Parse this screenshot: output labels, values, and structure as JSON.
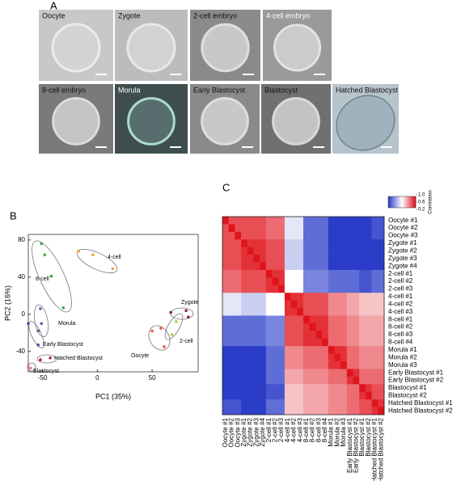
{
  "panel_a": {
    "label": "A",
    "images": [
      "Oocyte",
      "Zygote",
      "2-cell embryo",
      "4-cell embryo",
      "8-cell embryo",
      "Morula",
      "Early  Blastocyst",
      "Blastocyst",
      "Hatched  Blastocyst"
    ]
  },
  "chart_data": [
    {
      "type": "scatter",
      "panel_label": "B",
      "x_label": "PC1 (35%)",
      "y_label": "PC2 (16%)",
      "xlim": [
        -63,
        92
      ],
      "ylim": [
        -62,
        86
      ],
      "xticks": [
        -50,
        0,
        50
      ],
      "yticks": [
        -40,
        0,
        40,
        80
      ],
      "grid": false,
      "series": [
        {
          "name": "Oocyte",
          "color": "#e8554e",
          "x": [
            50,
            58,
            61
          ],
          "values": [
            -18,
            -15,
            -35
          ]
        },
        {
          "name": "Zygote",
          "color": "#8b2252",
          "x": [
            67,
            81,
            83
          ],
          "values": [
            2,
            4,
            -3
          ]
        },
        {
          "name": "2-cell",
          "color": "#a6cf4a",
          "x": [
            68,
            72
          ],
          "values": [
            -22,
            -8
          ]
        },
        {
          "name": "4-cell",
          "color": "#f0a030",
          "x": [
            -17,
            -4,
            14
          ],
          "values": [
            68,
            64,
            49
          ]
        },
        {
          "name": "8-cell",
          "color": "#3aa84a",
          "x": [
            -51,
            -48,
            -42,
            -31
          ],
          "values": [
            76,
            64,
            41,
            7
          ]
        },
        {
          "name": "Morula",
          "color": "#7a4fa0",
          "x": [
            -52,
            -51,
            -54
          ],
          "values": [
            6,
            -10,
            -18
          ]
        },
        {
          "name": "Early Blastocyst",
          "color": "#4a4ab0",
          "x": [
            -63,
            -54
          ],
          "values": [
            -10,
            -33
          ]
        },
        {
          "name": "Blastocyst",
          "color": "#e07aa0",
          "x": [
            -63,
            -61
          ],
          "values": [
            -55,
            -58
          ]
        },
        {
          "name": "Hatched Blastocyst",
          "color": "#b0203a",
          "x": [
            -52,
            -43
          ],
          "values": [
            -49,
            -47
          ]
        }
      ]
    },
    {
      "type": "heatmap",
      "panel_label": "C",
      "row_labels": [
        "Oocyte #1",
        "Oocyte #2",
        "Oocyte #3",
        "Zygote #1",
        "Zygote #2",
        "Zygote #3",
        "Zygote #4",
        "2-cell #1",
        "2-cell #2",
        "2-cell #3",
        "4-cell #1",
        "4-cell #2",
        "4-cell #3",
        "8-cell #1",
        "8-cell #2",
        "8-cell #3",
        "8-cell #4",
        "Morula #1",
        "Morula #2",
        "Morula #3",
        "Early Blastocyst #1",
        "Early Blastocyst #2",
        "Blastocyst #1",
        "Blastocyst #2",
        "Hatched Blastocyst #1",
        "Hatched Blastocyst #2"
      ],
      "column_labels": [
        "Oocyte #1",
        "Oocyte #2",
        "Oocyte #3",
        "Zygote #1",
        "Zygote #2",
        "Zygote #3",
        "Zygote #4",
        "2-cell #1",
        "2-cell #2",
        "2-cell #3",
        "4-cell #1",
        "4-cell #2",
        "4-cell #3",
        "8-cell #1",
        "8-cell #2",
        "8-cell #3",
        "8-cell #4",
        "Morula #1",
        "Morula #2",
        "Morula #3",
        "Early Blastocyst #1",
        "Early Blastocyst #2",
        "Blastocyst #1",
        "Blastocyst #2",
        "Hatched Blastocyst #1",
        "Hatched Blastocyst #2"
      ],
      "colorbar": {
        "title": "Correlation",
        "lim": [
          0.2,
          1
        ],
        "ticks": [
          {
            "value": 1,
            "label": "1.0"
          },
          0.6,
          0.2
        ],
        "low_color": "#2a3cc8",
        "mid_color": "#ffffff",
        "high_color": "#e0141c"
      },
      "values": [
        [
          1,
          0.9,
          0.9,
          0.9,
          0.9,
          0.9,
          0.9,
          0.85,
          0.85,
          0.85,
          0.55,
          0.55,
          0.55,
          0.3,
          0.3,
          0.3,
          0.3,
          0.2,
          0.2,
          0.2,
          0.2,
          0.2,
          0.2,
          0.2,
          0.25,
          0.25
        ],
        [
          0.9,
          1,
          0.9,
          0.9,
          0.9,
          0.9,
          0.9,
          0.85,
          0.85,
          0.85,
          0.55,
          0.55,
          0.55,
          0.3,
          0.3,
          0.3,
          0.3,
          0.2,
          0.2,
          0.2,
          0.2,
          0.2,
          0.2,
          0.2,
          0.25,
          0.25
        ],
        [
          0.9,
          0.9,
          1,
          0.9,
          0.9,
          0.9,
          0.9,
          0.85,
          0.85,
          0.85,
          0.55,
          0.55,
          0.55,
          0.3,
          0.3,
          0.3,
          0.3,
          0.2,
          0.2,
          0.2,
          0.2,
          0.2,
          0.2,
          0.2,
          0.25,
          0.25
        ],
        [
          0.9,
          0.9,
          0.9,
          1,
          0.95,
          0.95,
          0.95,
          0.9,
          0.9,
          0.9,
          0.5,
          0.5,
          0.5,
          0.3,
          0.3,
          0.3,
          0.3,
          0.2,
          0.2,
          0.2,
          0.2,
          0.2,
          0.2,
          0.2,
          0.2,
          0.2
        ],
        [
          0.9,
          0.9,
          0.9,
          0.95,
          1,
          0.95,
          0.95,
          0.9,
          0.9,
          0.9,
          0.5,
          0.5,
          0.5,
          0.3,
          0.3,
          0.3,
          0.3,
          0.2,
          0.2,
          0.2,
          0.2,
          0.2,
          0.2,
          0.2,
          0.2,
          0.2
        ],
        [
          0.9,
          0.9,
          0.9,
          0.95,
          0.95,
          1,
          0.95,
          0.9,
          0.9,
          0.9,
          0.5,
          0.5,
          0.5,
          0.3,
          0.3,
          0.3,
          0.3,
          0.2,
          0.2,
          0.2,
          0.2,
          0.2,
          0.2,
          0.2,
          0.2,
          0.2
        ],
        [
          0.9,
          0.9,
          0.9,
          0.95,
          0.95,
          0.95,
          1,
          0.9,
          0.9,
          0.9,
          0.5,
          0.5,
          0.5,
          0.3,
          0.3,
          0.3,
          0.3,
          0.2,
          0.2,
          0.2,
          0.2,
          0.2,
          0.2,
          0.2,
          0.2,
          0.2
        ],
        [
          0.85,
          0.85,
          0.85,
          0.9,
          0.9,
          0.9,
          0.9,
          1,
          0.95,
          0.95,
          0.6,
          0.6,
          0.6,
          0.35,
          0.35,
          0.35,
          0.35,
          0.3,
          0.3,
          0.3,
          0.3,
          0.3,
          0.25,
          0.25,
          0.3,
          0.3
        ],
        [
          0.85,
          0.85,
          0.85,
          0.9,
          0.9,
          0.9,
          0.9,
          0.95,
          1,
          0.95,
          0.6,
          0.6,
          0.6,
          0.35,
          0.35,
          0.35,
          0.35,
          0.3,
          0.3,
          0.3,
          0.3,
          0.3,
          0.25,
          0.25,
          0.3,
          0.3
        ],
        [
          0.85,
          0.85,
          0.85,
          0.9,
          0.9,
          0.9,
          0.9,
          0.95,
          0.95,
          1,
          0.6,
          0.6,
          0.6,
          0.35,
          0.35,
          0.35,
          0.35,
          0.3,
          0.3,
          0.3,
          0.3,
          0.3,
          0.25,
          0.25,
          0.3,
          0.3
        ],
        [
          0.55,
          0.55,
          0.55,
          0.5,
          0.5,
          0.5,
          0.5,
          0.6,
          0.6,
          0.6,
          1,
          0.95,
          0.95,
          0.9,
          0.9,
          0.9,
          0.9,
          0.8,
          0.8,
          0.8,
          0.75,
          0.75,
          0.7,
          0.7,
          0.7,
          0.7
        ],
        [
          0.55,
          0.55,
          0.55,
          0.5,
          0.5,
          0.5,
          0.5,
          0.6,
          0.6,
          0.6,
          0.95,
          1,
          0.95,
          0.9,
          0.9,
          0.9,
          0.9,
          0.8,
          0.8,
          0.8,
          0.75,
          0.75,
          0.7,
          0.7,
          0.7,
          0.7
        ],
        [
          0.55,
          0.55,
          0.55,
          0.5,
          0.5,
          0.5,
          0.5,
          0.6,
          0.6,
          0.6,
          0.95,
          0.95,
          1,
          0.9,
          0.9,
          0.9,
          0.9,
          0.8,
          0.8,
          0.8,
          0.75,
          0.75,
          0.7,
          0.7,
          0.7,
          0.7
        ],
        [
          0.3,
          0.3,
          0.3,
          0.3,
          0.3,
          0.3,
          0.3,
          0.35,
          0.35,
          0.35,
          0.9,
          0.9,
          0.9,
          1,
          0.95,
          0.95,
          0.95,
          0.85,
          0.85,
          0.85,
          0.8,
          0.8,
          0.75,
          0.75,
          0.75,
          0.75
        ],
        [
          0.3,
          0.3,
          0.3,
          0.3,
          0.3,
          0.3,
          0.3,
          0.35,
          0.35,
          0.35,
          0.9,
          0.9,
          0.9,
          0.95,
          1,
          0.95,
          0.95,
          0.85,
          0.85,
          0.85,
          0.8,
          0.8,
          0.75,
          0.75,
          0.75,
          0.75
        ],
        [
          0.3,
          0.3,
          0.3,
          0.3,
          0.3,
          0.3,
          0.3,
          0.35,
          0.35,
          0.35,
          0.9,
          0.9,
          0.9,
          0.95,
          0.95,
          1,
          0.95,
          0.85,
          0.85,
          0.85,
          0.8,
          0.8,
          0.75,
          0.75,
          0.75,
          0.75
        ],
        [
          0.3,
          0.3,
          0.3,
          0.3,
          0.3,
          0.3,
          0.3,
          0.35,
          0.35,
          0.35,
          0.9,
          0.9,
          0.9,
          0.95,
          0.95,
          0.95,
          1,
          0.85,
          0.85,
          0.85,
          0.8,
          0.8,
          0.75,
          0.75,
          0.75,
          0.75
        ],
        [
          0.2,
          0.2,
          0.2,
          0.2,
          0.2,
          0.2,
          0.2,
          0.3,
          0.3,
          0.3,
          0.8,
          0.8,
          0.8,
          0.85,
          0.85,
          0.85,
          0.85,
          1,
          0.95,
          0.95,
          0.85,
          0.85,
          0.8,
          0.8,
          0.8,
          0.8
        ],
        [
          0.2,
          0.2,
          0.2,
          0.2,
          0.2,
          0.2,
          0.2,
          0.3,
          0.3,
          0.3,
          0.8,
          0.8,
          0.8,
          0.85,
          0.85,
          0.85,
          0.85,
          0.95,
          1,
          0.95,
          0.85,
          0.85,
          0.8,
          0.8,
          0.8,
          0.8
        ],
        [
          0.2,
          0.2,
          0.2,
          0.2,
          0.2,
          0.2,
          0.2,
          0.3,
          0.3,
          0.3,
          0.8,
          0.8,
          0.8,
          0.85,
          0.85,
          0.85,
          0.85,
          0.95,
          0.95,
          1,
          0.85,
          0.85,
          0.8,
          0.8,
          0.8,
          0.8
        ],
        [
          0.2,
          0.2,
          0.2,
          0.2,
          0.2,
          0.2,
          0.2,
          0.3,
          0.3,
          0.3,
          0.75,
          0.75,
          0.75,
          0.8,
          0.8,
          0.8,
          0.8,
          0.85,
          0.85,
          0.85,
          1,
          0.95,
          0.85,
          0.85,
          0.85,
          0.85
        ],
        [
          0.2,
          0.2,
          0.2,
          0.2,
          0.2,
          0.2,
          0.2,
          0.3,
          0.3,
          0.3,
          0.75,
          0.75,
          0.75,
          0.8,
          0.8,
          0.8,
          0.8,
          0.85,
          0.85,
          0.85,
          0.95,
          1,
          0.85,
          0.85,
          0.85,
          0.85
        ],
        [
          0.2,
          0.2,
          0.2,
          0.2,
          0.2,
          0.2,
          0.2,
          0.25,
          0.25,
          0.25,
          0.7,
          0.7,
          0.7,
          0.75,
          0.75,
          0.75,
          0.75,
          0.8,
          0.8,
          0.8,
          0.85,
          0.85,
          1,
          0.95,
          0.9,
          0.9
        ],
        [
          0.2,
          0.2,
          0.2,
          0.2,
          0.2,
          0.2,
          0.2,
          0.25,
          0.25,
          0.25,
          0.7,
          0.7,
          0.7,
          0.75,
          0.75,
          0.75,
          0.75,
          0.8,
          0.8,
          0.8,
          0.85,
          0.85,
          0.95,
          1,
          0.9,
          0.9
        ],
        [
          0.25,
          0.25,
          0.25,
          0.2,
          0.2,
          0.2,
          0.2,
          0.3,
          0.3,
          0.3,
          0.7,
          0.7,
          0.7,
          0.75,
          0.75,
          0.75,
          0.75,
          0.8,
          0.8,
          0.8,
          0.85,
          0.85,
          0.9,
          0.9,
          1,
          0.95
        ],
        [
          0.25,
          0.25,
          0.25,
          0.2,
          0.2,
          0.2,
          0.2,
          0.3,
          0.3,
          0.3,
          0.7,
          0.7,
          0.7,
          0.75,
          0.75,
          0.75,
          0.75,
          0.8,
          0.8,
          0.8,
          0.85,
          0.85,
          0.9,
          0.9,
          0.95,
          1
        ]
      ]
    }
  ]
}
